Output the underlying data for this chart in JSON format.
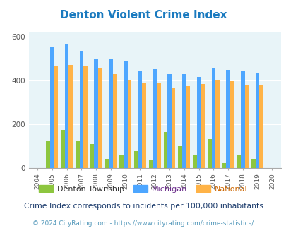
{
  "title": "Denton Violent Crime Index",
  "years": [
    2004,
    2005,
    2006,
    2007,
    2008,
    2009,
    2010,
    2011,
    2012,
    2013,
    2014,
    2015,
    2016,
    2017,
    2018,
    2019,
    2020
  ],
  "denton": [
    0,
    122,
    175,
    125,
    110,
    40,
    60,
    75,
    35,
    165,
    100,
    58,
    132,
    20,
    60,
    42,
    0
  ],
  "michigan": [
    0,
    553,
    568,
    537,
    502,
    500,
    492,
    443,
    453,
    430,
    430,
    415,
    460,
    450,
    443,
    436,
    0
  ],
  "national": [
    0,
    469,
    473,
    467,
    455,
    430,
    404,
    388,
    388,
    367,
    375,
    383,
    400,
    397,
    382,
    379,
    0
  ],
  "color_denton": "#8dc63f",
  "color_michigan": "#4da6ff",
  "color_national": "#ffb347",
  "bg_color": "#e8f4f8",
  "ylim": [
    0,
    620
  ],
  "yticks": [
    0,
    200,
    400,
    600
  ],
  "footnote1": "Crime Index corresponds to incidents per 100,000 inhabitants",
  "footnote2": "© 2024 CityRating.com - https://www.cityrating.com/crime-statistics/",
  "title_color": "#1a7abf",
  "legend_label1": "Denton Township",
  "legend_label2": "Michigan",
  "legend_label3": "National",
  "legend_color1": "#333333",
  "legend_color2": "#6b2d8b",
  "legend_color3": "#cc6600",
  "footnote1_color": "#1a3a6b",
  "footnote2_color": "#5599bb"
}
